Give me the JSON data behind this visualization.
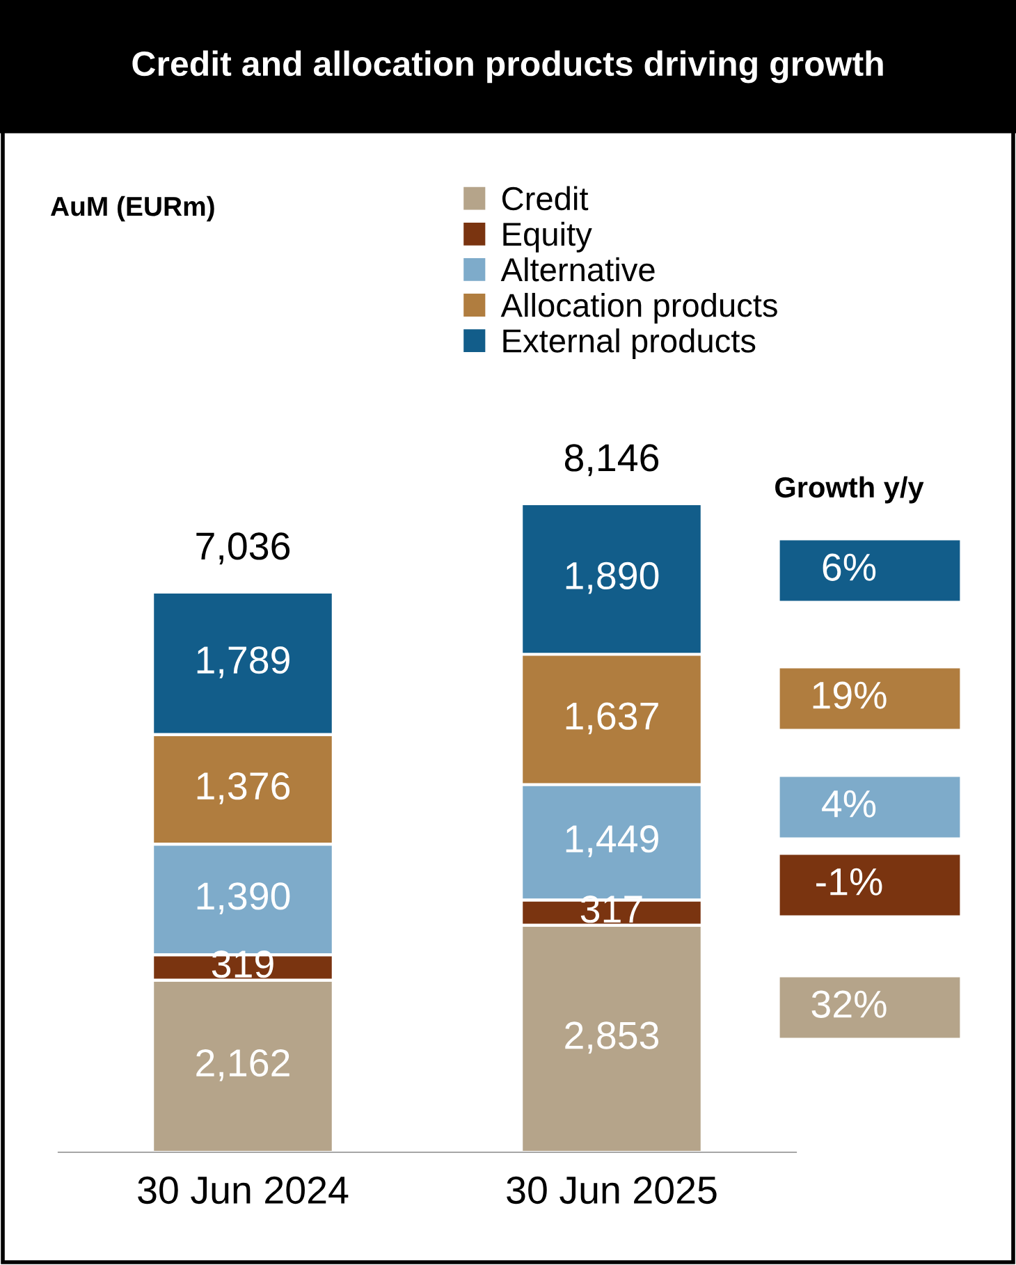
{
  "chart_data": {
    "type": "bar",
    "title": "Credit and allocation products driving growth",
    "categories": [
      "30 Jun 2024",
      "30 Jun 2025"
    ],
    "stacked": true,
    "legend": "top",
    "grid": false,
    "tick_labels": "x",
    "series": [
      {
        "name": "Credit",
        "color": "#b5a48a",
        "values": [
          2162,
          2853
        ],
        "value_labels": [
          "2,162",
          "2,853"
        ]
      },
      {
        "name": "Equity",
        "color": "#7a3410",
        "values": [
          319,
          317
        ],
        "value_labels": [
          "319",
          "317"
        ]
      },
      {
        "name": "Alternative",
        "color": "#7eabca",
        "values": [
          1390,
          1449
        ],
        "value_labels": [
          "1,390",
          "1,449"
        ]
      },
      {
        "name": "Allocation products",
        "color": "#b07d3f",
        "values": [
          1376,
          1637
        ],
        "value_labels": [
          "1,376",
          "1,637"
        ]
      },
      {
        "name": "External products",
        "color": "#125d8a",
        "values": [
          1789,
          1890
        ],
        "value_labels": [
          "1,789",
          "1,890"
        ]
      }
    ],
    "totals": [
      "7,036",
      "8,146"
    ],
    "annotations": [
      "AuM (EURm)",
      "Growth y/y",
      "6%",
      "19%",
      "4%",
      "-1%",
      "32%"
    ]
  }
}
